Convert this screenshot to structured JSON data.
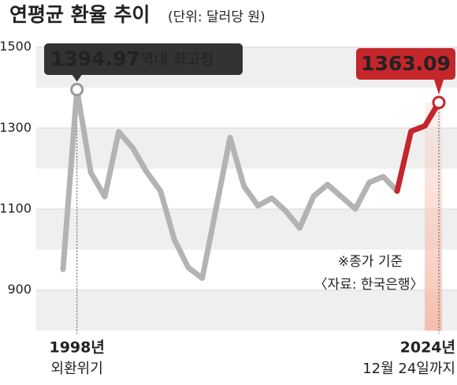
{
  "chart_data": {
    "type": "line",
    "title": "연평균 환율 추이",
    "subtitle": "(단위: 달러당 원)",
    "categories": [
      null,
      "1998년",
      null,
      null,
      null,
      null,
      null,
      null,
      null,
      null,
      null,
      null,
      null,
      null,
      null,
      null,
      null,
      null,
      null,
      null,
      null,
      null,
      null,
      null,
      null,
      null,
      null,
      "2024년"
    ],
    "category_notes": {
      "1": "외환위기",
      "27": "12월 24일까지"
    },
    "series": [
      {
        "name": null,
        "color": "#b3b3b3",
        "highlight_color": "#c4262b",
        "values": [
          951.3,
          1394.97,
          1189.5,
          1130.6,
          1290.8,
          1251.2,
          1191.9,
          1144.7,
          1024.3,
          955.5,
          929.3,
          1102.6,
          1276.4,
          1156.3,
          1108.1,
          1126.9,
          1095.0,
          1053.2,
          1131.5,
          1160.5,
          1130.5,
          1100.3,
          1165.7,
          1180.1,
          1144.4,
          1292.0,
          1305.4,
          1363.09
        ]
      }
    ],
    "annotations": {
      "peak_text": "역대 최고점",
      "note": "※종가 기준",
      "source": "〈자료: 한국은행〉"
    },
    "ylim": [
      800,
      1540
    ],
    "yticks": [
      900,
      1100,
      1300,
      1500
    ],
    "grid": true
  }
}
